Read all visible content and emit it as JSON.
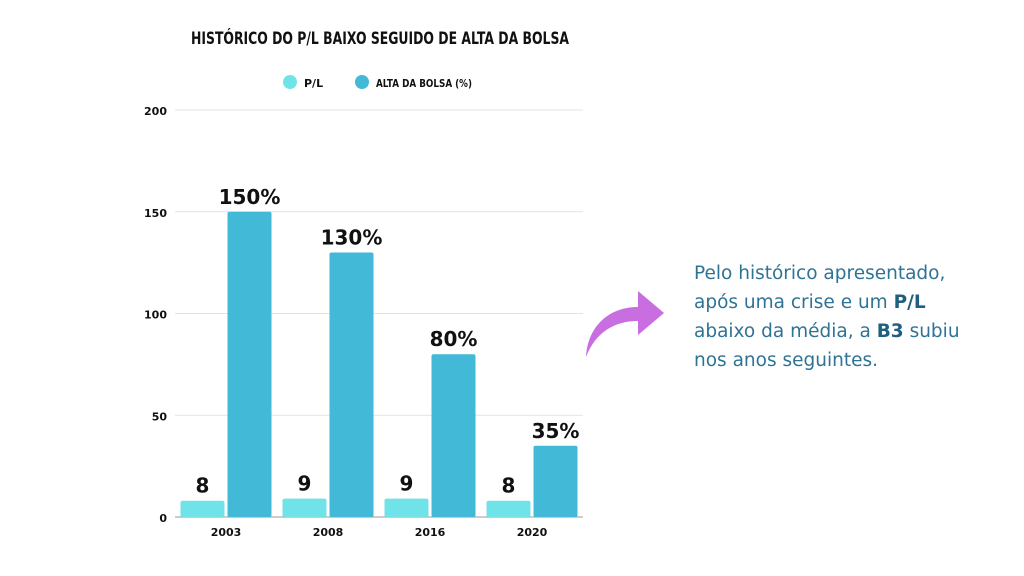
{
  "chart_data": {
    "type": "bar",
    "title": "HISTÓRICO DO P/L BAIXO SEGUIDO DE ALTA DA BOLSA",
    "categories": [
      "2003",
      "2008",
      "2016",
      "2020"
    ],
    "series": [
      {
        "name": "P/L",
        "values": [
          8,
          9,
          9,
          8
        ],
        "labels": [
          "8",
          "9",
          "9",
          "8"
        ],
        "color": "#6fe3e8"
      },
      {
        "name": "ALTA DA BOLSA (%)",
        "values": [
          150,
          130,
          80,
          35
        ],
        "labels": [
          "150%",
          "130%",
          "80%",
          "35%"
        ],
        "color": "#42b9d6"
      }
    ],
    "yticks": [
      "0",
      "50",
      "100",
      "150",
      "200"
    ],
    "ylim": [
      0,
      200
    ],
    "grid": true,
    "legend": "top-center",
    "xlabel": "",
    "ylabel": ""
  },
  "note": {
    "line1": "Pelo histórico apresentado,",
    "line2a": "após uma crise e um ",
    "line2b": "P/L",
    "line3a": "abaixo da média, a ",
    "line3b": "B3",
    "line3c": " subiu",
    "line4": "nos anos seguintes."
  },
  "arrow_color": "#c96ee0"
}
